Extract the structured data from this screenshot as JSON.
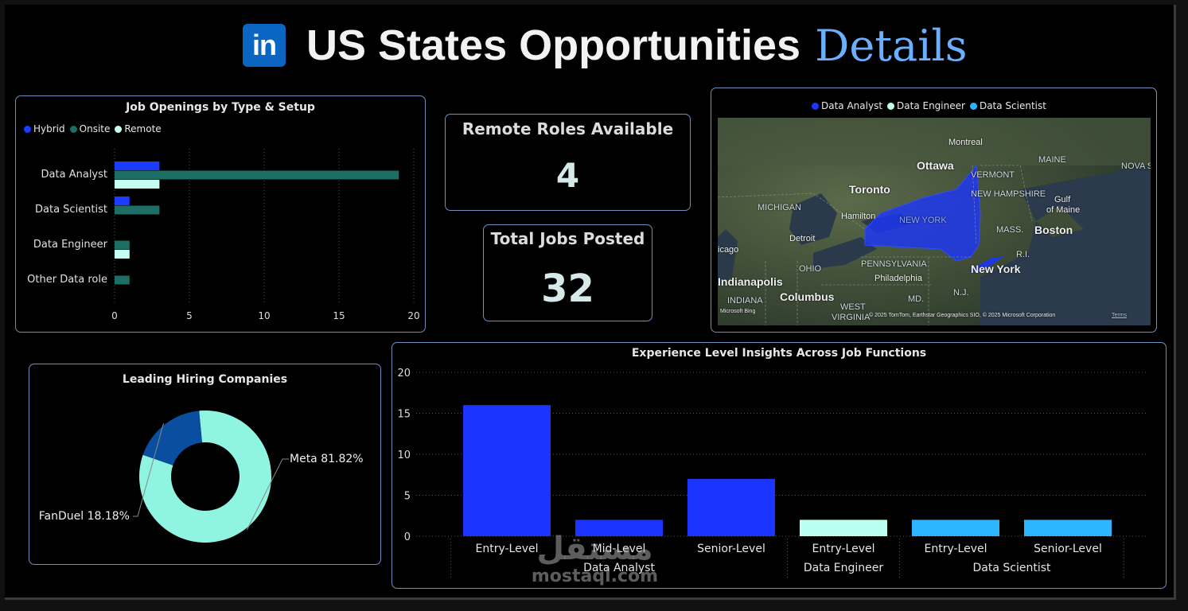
{
  "header": {
    "logo_text": "in",
    "title_main": "US States Opportunities",
    "title_accent": "Details"
  },
  "colors": {
    "hybrid": "#1b3bff",
    "onsite": "#1d6e64",
    "remote": "#c6fff2",
    "data_analyst": "#1b35ff",
    "data_engineer": "#b9fff2",
    "data_scientist": "#2bb6ff",
    "meta": "#8ff5e0",
    "fanduel": "#0a4ea0",
    "panel_border": "#6f8fbf"
  },
  "job_openings": {
    "title": "Job Openings by Type & Setup",
    "legend": [
      "Hybrid",
      "Onsite",
      "Remote"
    ],
    "chart_data": {
      "type": "bar",
      "orientation": "horizontal",
      "categories": [
        "Data Analyst",
        "Data Scientist",
        "Data Engineer",
        "Other Data role"
      ],
      "series": [
        {
          "name": "Hybrid",
          "values": [
            3,
            1,
            0,
            0
          ]
        },
        {
          "name": "Onsite",
          "values": [
            19,
            3,
            1,
            1
          ]
        },
        {
          "name": "Remote",
          "values": [
            3,
            0,
            1,
            0
          ]
        }
      ],
      "xticks": [
        "0",
        "5",
        "10",
        "15",
        "20"
      ],
      "xlim": [
        0,
        20
      ],
      "grid": true,
      "legend_position": "top-left"
    }
  },
  "kpis": {
    "remote_label": "Remote Roles Available",
    "remote_value": "4",
    "total_label": "Total Jobs Posted",
    "total_value": "32"
  },
  "map": {
    "legend": [
      "Data Analyst",
      "Data Engineer",
      "Data Scientist"
    ],
    "highlighted_state": "NEW YORK",
    "city_labels": [
      "Montreal",
      "Ottawa",
      "Toronto",
      "Hamilton",
      "Detroit",
      "icago",
      "Indianapolis",
      "Columbus",
      "Philadelphia",
      "Boston",
      "New York"
    ],
    "region_labels": [
      "MICHIGAN",
      "VERMONT",
      "NEW HAMPSHIRE",
      "MAINE",
      "NOVA S",
      "MASS.",
      "R.I.",
      "PENNSYLVANIA",
      "OHIO",
      "INDIANA",
      "MD.",
      "N.J.",
      "WEST",
      "VIRGINIA",
      "Gulf",
      "of Maine"
    ],
    "attribution": "© 2025 TomTom, Earthstar Geographics SIO, © 2025 Microsoft Corporation",
    "terms": "Terms",
    "provider": "Microsoft Bing"
  },
  "companies": {
    "title": "Leading Hiring Companies",
    "chart_data": {
      "type": "pie",
      "donut": true,
      "categories": [
        "Meta",
        "FanDuel"
      ],
      "values": [
        81.82,
        18.18
      ],
      "labels": [
        "Meta 81.82%",
        "FanDuel 18.18%"
      ]
    }
  },
  "experience": {
    "title": "Experience Level Insights Across Job Functions",
    "chart_data": {
      "type": "bar",
      "categories": [
        "Entry-Level",
        "Mid-Level",
        "Senior-Level",
        "Entry-Level",
        "Entry-Level",
        "Senior-Level"
      ],
      "groups": [
        {
          "name": "Data Analyst",
          "categories": [
            "Entry-Level",
            "Mid-Level",
            "Senior-Level"
          ],
          "values": [
            16,
            2,
            7
          ]
        },
        {
          "name": "Data Engineer",
          "categories": [
            "Entry-Level"
          ],
          "values": [
            2
          ]
        },
        {
          "name": "Data Scientist",
          "categories": [
            "Entry-Level",
            "Senior-Level"
          ],
          "values": [
            2,
            2
          ]
        }
      ],
      "yticks": [
        "0",
        "5",
        "10",
        "15",
        "20"
      ],
      "ylim": [
        0,
        20
      ],
      "grid": true
    }
  },
  "watermark": {
    "arabic": "مستقل",
    "latin": "mostaql.com"
  }
}
